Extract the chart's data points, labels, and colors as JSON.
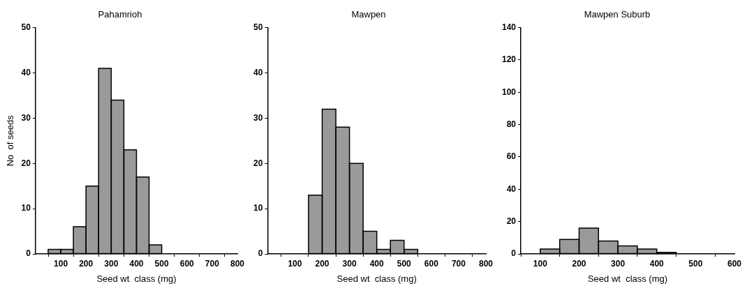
{
  "chart_data": [
    {
      "type": "histogram",
      "title": "Pahamrioh",
      "xlabel": "Seed wt  class (mg)",
      "ylabel": "No  of seeds",
      "color": "#9a9a9a",
      "bins": [
        50,
        100,
        150,
        200,
        250,
        300,
        350,
        400,
        450,
        500
      ],
      "values": [
        1,
        1,
        6,
        15,
        41,
        34,
        23,
        17,
        2
      ],
      "xlim": [
        0,
        800
      ],
      "xticks": [
        100,
        200,
        300,
        400,
        500,
        600,
        700,
        800
      ],
      "ylim": [
        0,
        50
      ],
      "yticks": [
        0,
        10,
        20,
        30,
        40,
        50
      ],
      "grid": false,
      "legend": false
    },
    {
      "type": "histogram",
      "title": "Mawpen",
      "xlabel": "Seed wt  class (mg)",
      "color": "#9a9a9a",
      "bins": [
        150,
        200,
        250,
        300,
        350,
        400,
        450,
        500,
        550
      ],
      "values": [
        13,
        32,
        28,
        20,
        5,
        1,
        3,
        1
      ],
      "xlim": [
        0,
        800
      ],
      "xticks": [
        100,
        200,
        300,
        400,
        500,
        600,
        700,
        800
      ],
      "ylim": [
        0,
        50
      ],
      "yticks": [
        0,
        10,
        20,
        30,
        40,
        50
      ],
      "grid": false,
      "legend": false
    },
    {
      "type": "histogram",
      "title": "Mawpen Suburb",
      "xlabel": "Seed wt  class (mg)",
      "color": "#9a9a9a",
      "bins": [
        100,
        150,
        200,
        250,
        300,
        350,
        400,
        450
      ],
      "values": [
        3,
        9,
        16,
        8,
        5,
        3,
        1
      ],
      "xlim": [
        50,
        600
      ],
      "xticks": [
        100,
        200,
        300,
        400,
        500,
        600
      ],
      "ylim": [
        0,
        140
      ],
      "yticks": [
        0,
        20,
        40,
        60,
        80,
        100,
        120,
        140
      ],
      "grid": false,
      "legend": false
    }
  ]
}
